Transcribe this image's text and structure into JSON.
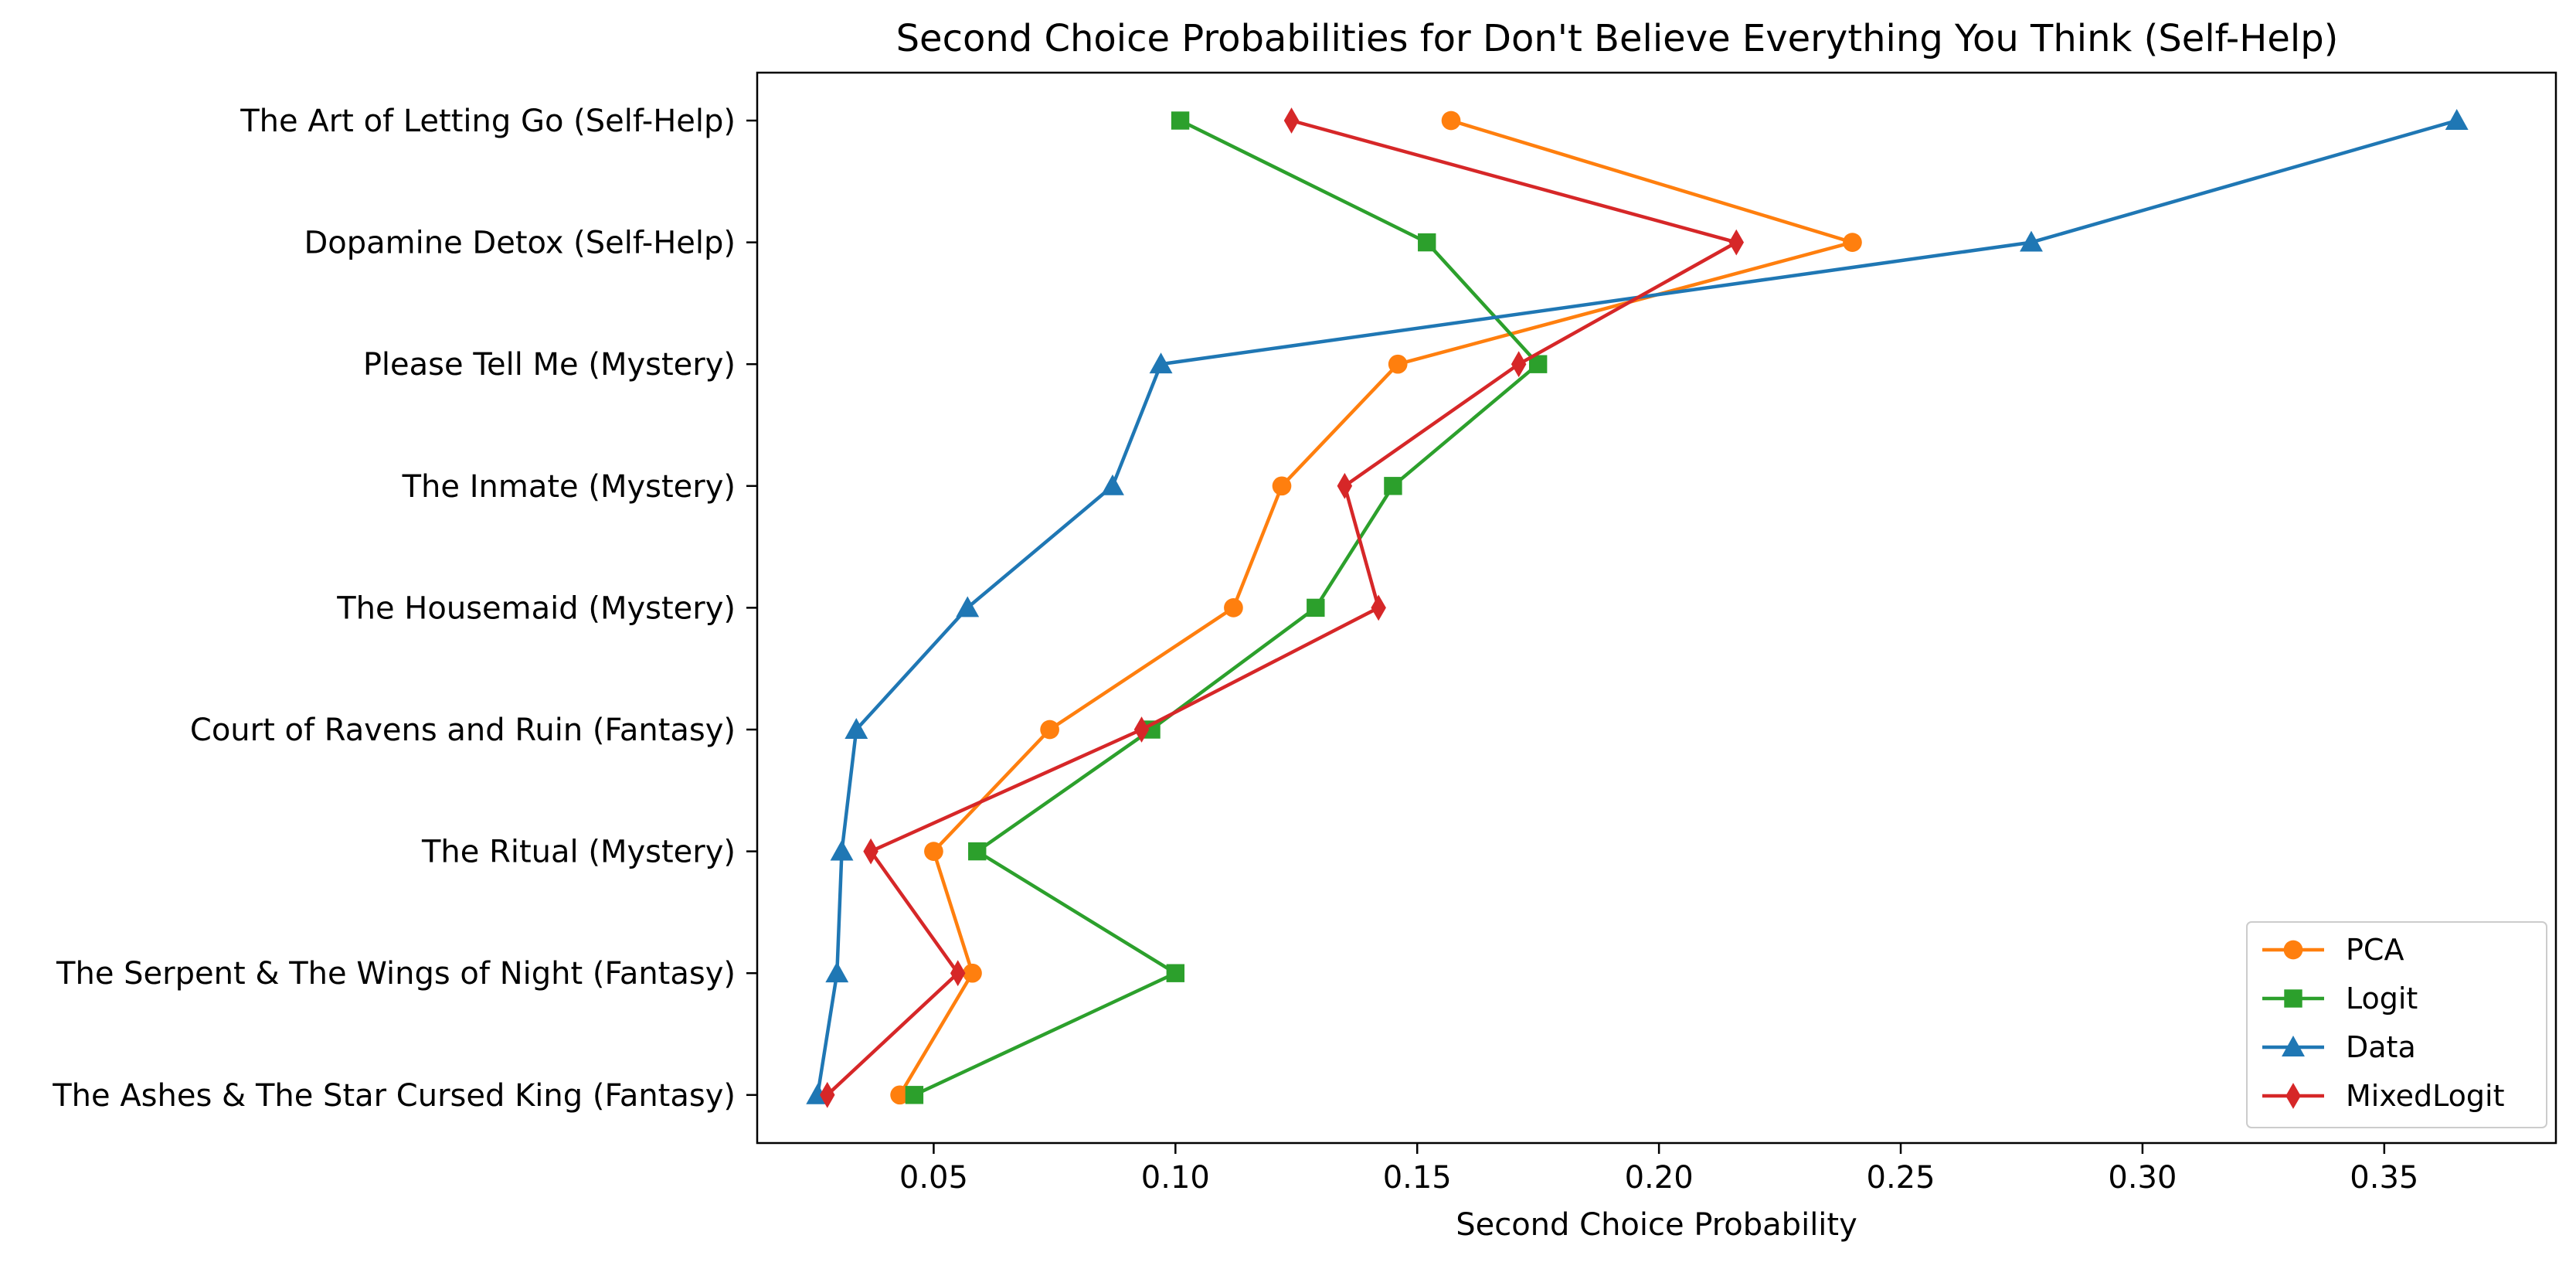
{
  "chart_data": {
    "type": "line",
    "title": "Second Choice Probabilities for Don't Believe Everything You Think (Self-Help)",
    "xlabel": "Second Choice Probability",
    "ylabel": "",
    "categories": [
      "The Art of Letting Go (Self-Help)",
      "Dopamine Detox (Self-Help)",
      "Please Tell Me (Mystery)",
      "The Inmate (Mystery)",
      "The Housemaid (Mystery)",
      "Court of Ravens and Ruin (Fantasy)",
      "The Ritual (Mystery)",
      "The Serpent & The Wings of Night (Fantasy)",
      "The Ashes & The Star Cursed King (Fantasy)"
    ],
    "xlim": [
      0.0135,
      0.3855
    ],
    "xticks": [
      "0.05",
      "0.10",
      "0.15",
      "0.20",
      "0.25",
      "0.30",
      "0.35"
    ],
    "grid": false,
    "legend_position": "lower-right",
    "series": [
      {
        "name": "PCA",
        "color": "#ff7f0e",
        "marker": "circle",
        "values": [
          0.157,
          0.24,
          0.146,
          0.122,
          0.112,
          0.074,
          0.05,
          0.058,
          0.043
        ]
      },
      {
        "name": "Logit",
        "color": "#2ca02c",
        "marker": "square",
        "values": [
          0.101,
          0.152,
          0.175,
          0.145,
          0.129,
          0.095,
          0.059,
          0.1,
          0.046
        ]
      },
      {
        "name": "Data",
        "color": "#1f77b4",
        "marker": "triangle",
        "values": [
          0.365,
          0.277,
          0.097,
          0.087,
          0.057,
          0.034,
          0.031,
          0.03,
          0.026
        ]
      },
      {
        "name": "MixedLogit",
        "color": "#d62728",
        "marker": "diamond",
        "values": [
          0.124,
          0.216,
          0.171,
          0.135,
          0.142,
          0.093,
          0.037,
          0.055,
          0.028
        ]
      }
    ]
  }
}
